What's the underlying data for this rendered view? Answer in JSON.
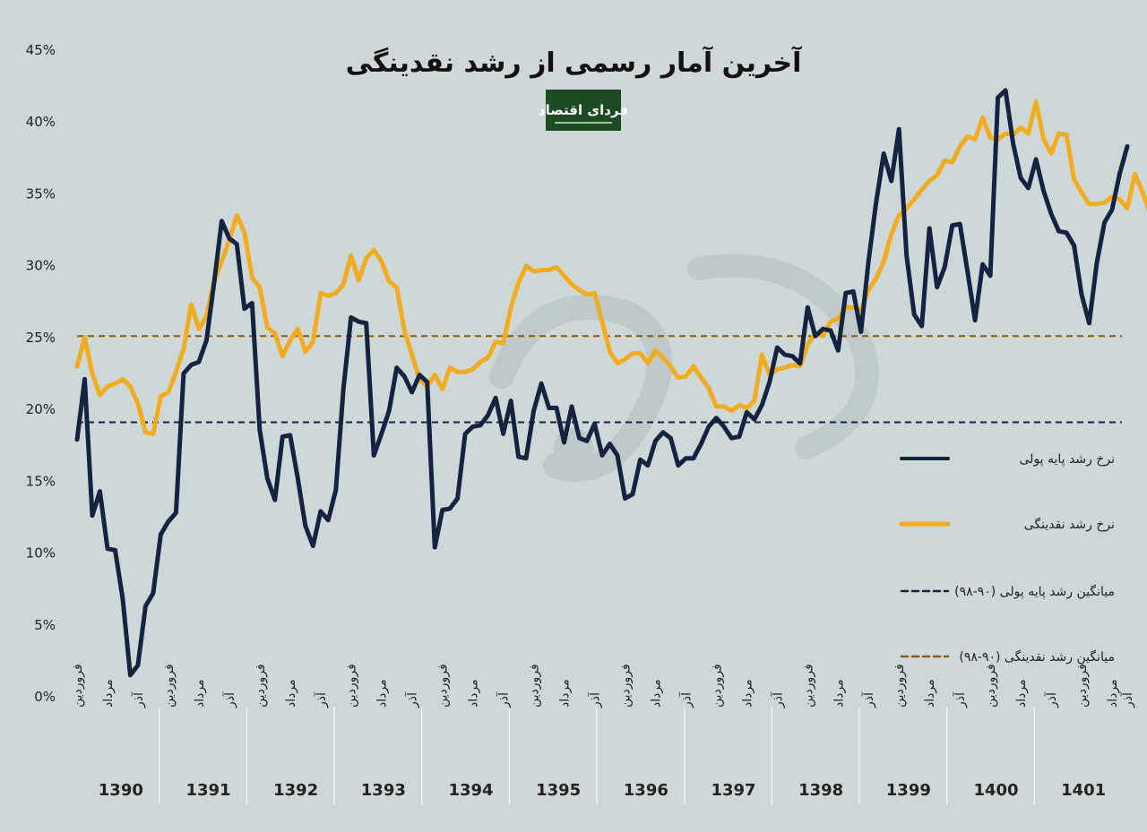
{
  "chart_data": {
    "type": "line",
    "title": "آخرین آمار رسمی از رشد نقدینگی",
    "logo_text": "فردای اقتصاد",
    "ylim": [
      0,
      45
    ],
    "yticks": [
      {
        "v": 0,
        "label": "0%"
      },
      {
        "v": 5,
        "label": "5%"
      },
      {
        "v": 10,
        "label": "10%"
      },
      {
        "v": 15,
        "label": "15%"
      },
      {
        "v": 20,
        "label": "20%"
      },
      {
        "v": 25,
        "label": "25%"
      },
      {
        "v": 30,
        "label": "30%"
      },
      {
        "v": 35,
        "label": "35%"
      },
      {
        "v": 40,
        "label": "40%"
      },
      {
        "v": 45,
        "label": "45%"
      }
    ],
    "month_labels": [
      "فروردین",
      "مرداد",
      "آذر"
    ],
    "years": [
      "1390",
      "1391",
      "1392",
      "1393",
      "1394",
      "1395",
      "1396",
      "1397",
      "1398",
      "1399",
      "1400",
      "1401"
    ],
    "series": [
      {
        "name": "نرخ رشد پایه پولی",
        "color": "#14233f",
        "values": [
          17.9,
          22.1,
          12.6,
          14.3,
          10.3,
          10.2,
          6.8,
          1.5,
          2.2,
          6.3,
          7.2,
          11.3,
          12.2,
          12.8,
          22.5,
          23.1,
          23.3,
          24.8,
          28.8,
          33.1,
          31.9,
          31.5,
          27,
          27.4,
          18.6,
          15.2,
          13.7,
          18.1,
          18.2,
          15.2,
          11.9,
          10.5,
          12.9,
          12.3,
          14.4,
          21.4,
          26.4,
          26.1,
          26,
          16.8,
          18.3,
          19.9,
          22.9,
          22.3,
          21.2,
          22.4,
          21.9,
          10.4,
          13,
          13.1,
          13.8,
          18.3,
          18.8,
          18.9,
          19.6,
          20.8,
          18.3,
          20.6,
          16.7,
          16.6,
          19.9,
          21.8,
          20.1,
          20.1,
          17.7,
          20.2,
          18,
          17.8,
          19,
          16.8,
          17.6,
          16.8,
          13.8,
          14.1,
          16.5,
          16.1,
          17.8,
          18.4,
          18,
          16.1,
          16.6,
          16.6,
          17.6,
          18.8,
          19.4,
          18.8,
          18,
          18.1,
          19.8,
          19.3,
          20.3,
          21.9,
          24.3,
          23.8,
          23.7,
          23.2,
          27.1,
          25.1,
          25.6,
          25.5,
          24.1,
          28.1,
          28.2,
          25.4,
          30.3,
          34.4,
          37.8,
          35.9,
          39.5,
          30.7,
          26.6,
          25.8,
          32.6,
          28.5,
          29.9,
          32.8,
          32.9,
          29.6,
          26.2,
          30.1,
          29.3,
          41.7,
          42.2,
          38.5,
          36.1,
          35.4,
          37.4,
          35.2,
          33.6,
          32.4,
          32.3,
          31.4,
          28,
          26,
          30.2,
          33,
          33.9,
          36.4,
          38.3
        ]
      },
      {
        "name": "نرخ رشد نقدینگی",
        "color": "#f2ac1f",
        "values": [
          23,
          25,
          22.5,
          21,
          21.6,
          21.8,
          22.1,
          21.6,
          20.4,
          18.4,
          18.3,
          20.9,
          21.2,
          22.6,
          24.2,
          27.3,
          25.6,
          26.5,
          28.9,
          30.3,
          31.8,
          33.5,
          32.3,
          29.2,
          28.5,
          25.7,
          25.3,
          23.7,
          24.8,
          25.6,
          24,
          24.7,
          28.1,
          27.9,
          28.1,
          28.7,
          30.7,
          29,
          30.5,
          31.1,
          30.3,
          28.9,
          28.5,
          25.5,
          23.8,
          22.1,
          21.6,
          22.4,
          21.4,
          22.9,
          22.6,
          22.6,
          22.8,
          23.3,
          23.6,
          24.7,
          24.6,
          27.1,
          28.8,
          30,
          29.6,
          29.7,
          29.7,
          29.9,
          29.3,
          28.7,
          28.3,
          28,
          28.1,
          26.1,
          24,
          23.2,
          23.5,
          23.9,
          23.9,
          23.2,
          24.1,
          23.6,
          23,
          22.2,
          22.3,
          23,
          22.2,
          21.5,
          20.2,
          20.2,
          19.9,
          20.3,
          20.1,
          20.6,
          23.8,
          22.4,
          22.8,
          22.9,
          23.1,
          23,
          24.5,
          25.3,
          25.1,
          26.1,
          26.3,
          27.1,
          27.1,
          26.9,
          28.3,
          29.1,
          30.3,
          32.2,
          33.5,
          34,
          34.6,
          35.3,
          35.9,
          36.3,
          37.3,
          37.2,
          38.3,
          39,
          38.8,
          40.3,
          38.9,
          38.8,
          39.2,
          39.1,
          39.6,
          39.2,
          41.4,
          38.8,
          37.8,
          39.2,
          39.1,
          36,
          35.1,
          34.3,
          34.3,
          34.4,
          34.8,
          34.6,
          34,
          36.4,
          35.1,
          33.7
        ]
      }
    ],
    "reference_lines": [
      {
        "name": "میانگین رشد پایه پولی (۹۰-۹۸)",
        "value": 19.1,
        "color": "#14233f"
      },
      {
        "name": "میانگین رشد نقدینگی (۹۰-۹۸)",
        "value": 25.1,
        "color": "#8a5a10"
      }
    ]
  }
}
